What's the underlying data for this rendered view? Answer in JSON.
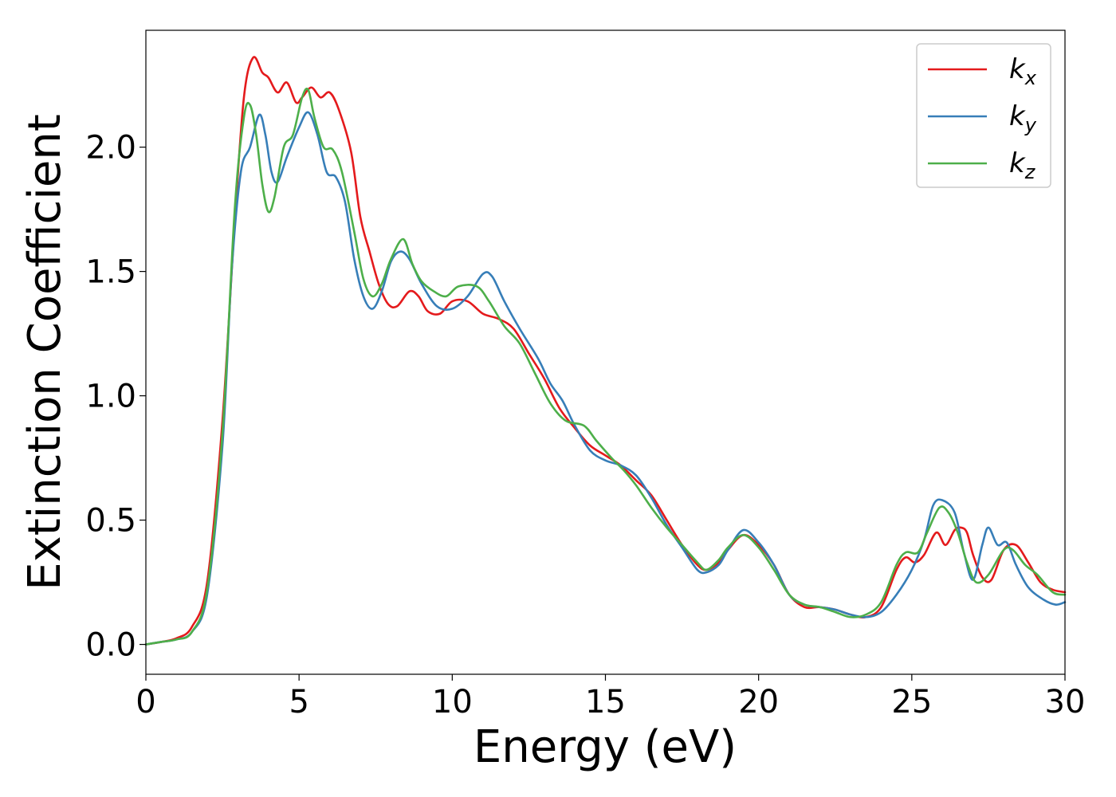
{
  "chart_data": {
    "type": "line",
    "xlabel": "Energy (eV)",
    "ylabel": "Extinction Coefficient",
    "xlim": [
      0,
      30
    ],
    "ylim": [
      -0.12,
      2.47
    ],
    "xticks": [
      0,
      5,
      10,
      15,
      20,
      25,
      30
    ],
    "xtick_labels": [
      "0",
      "5",
      "10",
      "15",
      "20",
      "25",
      "30"
    ],
    "yticks": [
      0.0,
      0.5,
      1.0,
      1.5,
      2.0
    ],
    "ytick_labels": [
      "0.0",
      "0.5",
      "1.0",
      "1.5",
      "2.0"
    ],
    "grid": false,
    "legend_position": "top-right",
    "series": [
      {
        "name": "k_x",
        "label_main": "k",
        "label_sub": "x",
        "color": "#e41a1c",
        "points": [
          [
            0,
            0
          ],
          [
            0.5,
            0.01
          ],
          [
            1.0,
            0.025
          ],
          [
            1.5,
            0.07
          ],
          [
            2.0,
            0.25
          ],
          [
            2.5,
            0.9
          ],
          [
            2.9,
            1.7
          ],
          [
            3.2,
            2.2
          ],
          [
            3.5,
            2.36
          ],
          [
            3.8,
            2.3
          ],
          [
            4.0,
            2.28
          ],
          [
            4.3,
            2.22
          ],
          [
            4.6,
            2.26
          ],
          [
            4.9,
            2.18
          ],
          [
            5.1,
            2.2
          ],
          [
            5.4,
            2.24
          ],
          [
            5.7,
            2.2
          ],
          [
            6.0,
            2.22
          ],
          [
            6.3,
            2.15
          ],
          [
            6.7,
            1.98
          ],
          [
            7.0,
            1.72
          ],
          [
            7.3,
            1.58
          ],
          [
            7.6,
            1.45
          ],
          [
            7.9,
            1.37
          ],
          [
            8.2,
            1.36
          ],
          [
            8.6,
            1.42
          ],
          [
            8.9,
            1.4
          ],
          [
            9.2,
            1.34
          ],
          [
            9.6,
            1.33
          ],
          [
            10.0,
            1.38
          ],
          [
            10.5,
            1.38
          ],
          [
            11.0,
            1.33
          ],
          [
            11.5,
            1.31
          ],
          [
            12.0,
            1.27
          ],
          [
            12.5,
            1.17
          ],
          [
            13.0,
            1.07
          ],
          [
            13.5,
            0.95
          ],
          [
            14.0,
            0.87
          ],
          [
            14.5,
            0.8
          ],
          [
            15.0,
            0.76
          ],
          [
            15.5,
            0.72
          ],
          [
            16.0,
            0.66
          ],
          [
            16.5,
            0.6
          ],
          [
            17.0,
            0.5
          ],
          [
            17.5,
            0.4
          ],
          [
            18.0,
            0.32
          ],
          [
            18.3,
            0.3
          ],
          [
            18.7,
            0.33
          ],
          [
            19.0,
            0.38
          ],
          [
            19.5,
            0.44
          ],
          [
            20.0,
            0.4
          ],
          [
            20.5,
            0.32
          ],
          [
            21.0,
            0.2
          ],
          [
            21.5,
            0.15
          ],
          [
            22.0,
            0.15
          ],
          [
            22.5,
            0.14
          ],
          [
            23.0,
            0.12
          ],
          [
            23.5,
            0.11
          ],
          [
            24.0,
            0.15
          ],
          [
            24.5,
            0.3
          ],
          [
            24.8,
            0.35
          ],
          [
            25.1,
            0.33
          ],
          [
            25.4,
            0.36
          ],
          [
            25.8,
            0.45
          ],
          [
            26.1,
            0.4
          ],
          [
            26.4,
            0.46
          ],
          [
            26.6,
            0.47
          ],
          [
            26.8,
            0.45
          ],
          [
            27.0,
            0.36
          ],
          [
            27.3,
            0.27
          ],
          [
            27.6,
            0.26
          ],
          [
            28.0,
            0.38
          ],
          [
            28.4,
            0.4
          ],
          [
            28.8,
            0.33
          ],
          [
            29.2,
            0.25
          ],
          [
            29.6,
            0.22
          ],
          [
            30.0,
            0.21
          ]
        ]
      },
      {
        "name": "k_y",
        "label_main": "k",
        "label_sub": "y",
        "color": "#377eb8",
        "points": [
          [
            0,
            0
          ],
          [
            0.5,
            0.01
          ],
          [
            1.0,
            0.02
          ],
          [
            1.5,
            0.05
          ],
          [
            2.0,
            0.2
          ],
          [
            2.5,
            0.8
          ],
          [
            2.8,
            1.5
          ],
          [
            3.1,
            1.9
          ],
          [
            3.4,
            2.0
          ],
          [
            3.7,
            2.13
          ],
          [
            3.9,
            2.05
          ],
          [
            4.1,
            1.9
          ],
          [
            4.3,
            1.86
          ],
          [
            4.6,
            1.96
          ],
          [
            5.0,
            2.08
          ],
          [
            5.3,
            2.14
          ],
          [
            5.6,
            2.05
          ],
          [
            5.9,
            1.9
          ],
          [
            6.2,
            1.88
          ],
          [
            6.5,
            1.78
          ],
          [
            6.8,
            1.55
          ],
          [
            7.1,
            1.4
          ],
          [
            7.4,
            1.35
          ],
          [
            7.7,
            1.42
          ],
          [
            8.0,
            1.54
          ],
          [
            8.3,
            1.58
          ],
          [
            8.6,
            1.55
          ],
          [
            9.0,
            1.45
          ],
          [
            9.5,
            1.36
          ],
          [
            10.0,
            1.35
          ],
          [
            10.5,
            1.4
          ],
          [
            11.0,
            1.49
          ],
          [
            11.3,
            1.48
          ],
          [
            11.7,
            1.38
          ],
          [
            12.2,
            1.27
          ],
          [
            12.8,
            1.15
          ],
          [
            13.2,
            1.05
          ],
          [
            13.6,
            0.98
          ],
          [
            14.0,
            0.88
          ],
          [
            14.5,
            0.78
          ],
          [
            15.0,
            0.74
          ],
          [
            15.5,
            0.72
          ],
          [
            16.0,
            0.68
          ],
          [
            16.5,
            0.59
          ],
          [
            17.0,
            0.48
          ],
          [
            17.5,
            0.39
          ],
          [
            18.0,
            0.3
          ],
          [
            18.3,
            0.29
          ],
          [
            18.7,
            0.32
          ],
          [
            19.0,
            0.38
          ],
          [
            19.5,
            0.46
          ],
          [
            20.0,
            0.41
          ],
          [
            20.5,
            0.32
          ],
          [
            21.0,
            0.2
          ],
          [
            21.5,
            0.16
          ],
          [
            22.0,
            0.15
          ],
          [
            22.5,
            0.14
          ],
          [
            23.0,
            0.12
          ],
          [
            23.5,
            0.11
          ],
          [
            24.0,
            0.13
          ],
          [
            24.5,
            0.2
          ],
          [
            25.0,
            0.3
          ],
          [
            25.4,
            0.42
          ],
          [
            25.7,
            0.56
          ],
          [
            26.0,
            0.58
          ],
          [
            26.4,
            0.53
          ],
          [
            26.7,
            0.37
          ],
          [
            27.0,
            0.26
          ],
          [
            27.3,
            0.4
          ],
          [
            27.5,
            0.47
          ],
          [
            27.8,
            0.4
          ],
          [
            28.1,
            0.41
          ],
          [
            28.4,
            0.32
          ],
          [
            28.8,
            0.23
          ],
          [
            29.3,
            0.18
          ],
          [
            29.7,
            0.16
          ],
          [
            30.0,
            0.17
          ]
        ]
      },
      {
        "name": "k_z",
        "label_main": "k",
        "label_sub": "z",
        "color": "#4daf4a",
        "points": [
          [
            0,
            0
          ],
          [
            0.5,
            0.01
          ],
          [
            1.0,
            0.02
          ],
          [
            1.5,
            0.05
          ],
          [
            2.0,
            0.22
          ],
          [
            2.5,
            0.85
          ],
          [
            2.9,
            1.75
          ],
          [
            3.2,
            2.12
          ],
          [
            3.4,
            2.17
          ],
          [
            3.6,
            2.05
          ],
          [
            3.8,
            1.85
          ],
          [
            4.0,
            1.74
          ],
          [
            4.2,
            1.8
          ],
          [
            4.5,
            2.0
          ],
          [
            4.8,
            2.05
          ],
          [
            5.1,
            2.2
          ],
          [
            5.3,
            2.23
          ],
          [
            5.5,
            2.12
          ],
          [
            5.8,
            2.0
          ],
          [
            6.1,
            1.99
          ],
          [
            6.4,
            1.9
          ],
          [
            6.8,
            1.66
          ],
          [
            7.1,
            1.47
          ],
          [
            7.4,
            1.4
          ],
          [
            7.7,
            1.45
          ],
          [
            8.0,
            1.55
          ],
          [
            8.4,
            1.63
          ],
          [
            8.7,
            1.53
          ],
          [
            9.0,
            1.46
          ],
          [
            9.4,
            1.42
          ],
          [
            9.8,
            1.4
          ],
          [
            10.2,
            1.44
          ],
          [
            10.8,
            1.44
          ],
          [
            11.2,
            1.38
          ],
          [
            11.7,
            1.28
          ],
          [
            12.2,
            1.21
          ],
          [
            12.7,
            1.09
          ],
          [
            13.2,
            0.97
          ],
          [
            13.7,
            0.9
          ],
          [
            14.3,
            0.88
          ],
          [
            14.7,
            0.82
          ],
          [
            15.2,
            0.75
          ],
          [
            15.6,
            0.7
          ],
          [
            16.0,
            0.64
          ],
          [
            16.5,
            0.55
          ],
          [
            17.0,
            0.47
          ],
          [
            17.5,
            0.4
          ],
          [
            18.0,
            0.33
          ],
          [
            18.3,
            0.3
          ],
          [
            18.7,
            0.34
          ],
          [
            19.0,
            0.39
          ],
          [
            19.5,
            0.44
          ],
          [
            20.0,
            0.39
          ],
          [
            20.5,
            0.3
          ],
          [
            21.0,
            0.2
          ],
          [
            21.5,
            0.16
          ],
          [
            22.0,
            0.15
          ],
          [
            22.5,
            0.13
          ],
          [
            23.0,
            0.11
          ],
          [
            23.5,
            0.12
          ],
          [
            24.0,
            0.17
          ],
          [
            24.5,
            0.32
          ],
          [
            24.8,
            0.37
          ],
          [
            25.2,
            0.37
          ],
          [
            25.5,
            0.45
          ],
          [
            25.9,
            0.55
          ],
          [
            26.2,
            0.53
          ],
          [
            26.5,
            0.45
          ],
          [
            26.8,
            0.33
          ],
          [
            27.1,
            0.25
          ],
          [
            27.5,
            0.28
          ],
          [
            28.0,
            0.38
          ],
          [
            28.3,
            0.38
          ],
          [
            28.7,
            0.32
          ],
          [
            29.1,
            0.28
          ],
          [
            29.6,
            0.21
          ],
          [
            30.0,
            0.2
          ]
        ]
      }
    ]
  }
}
